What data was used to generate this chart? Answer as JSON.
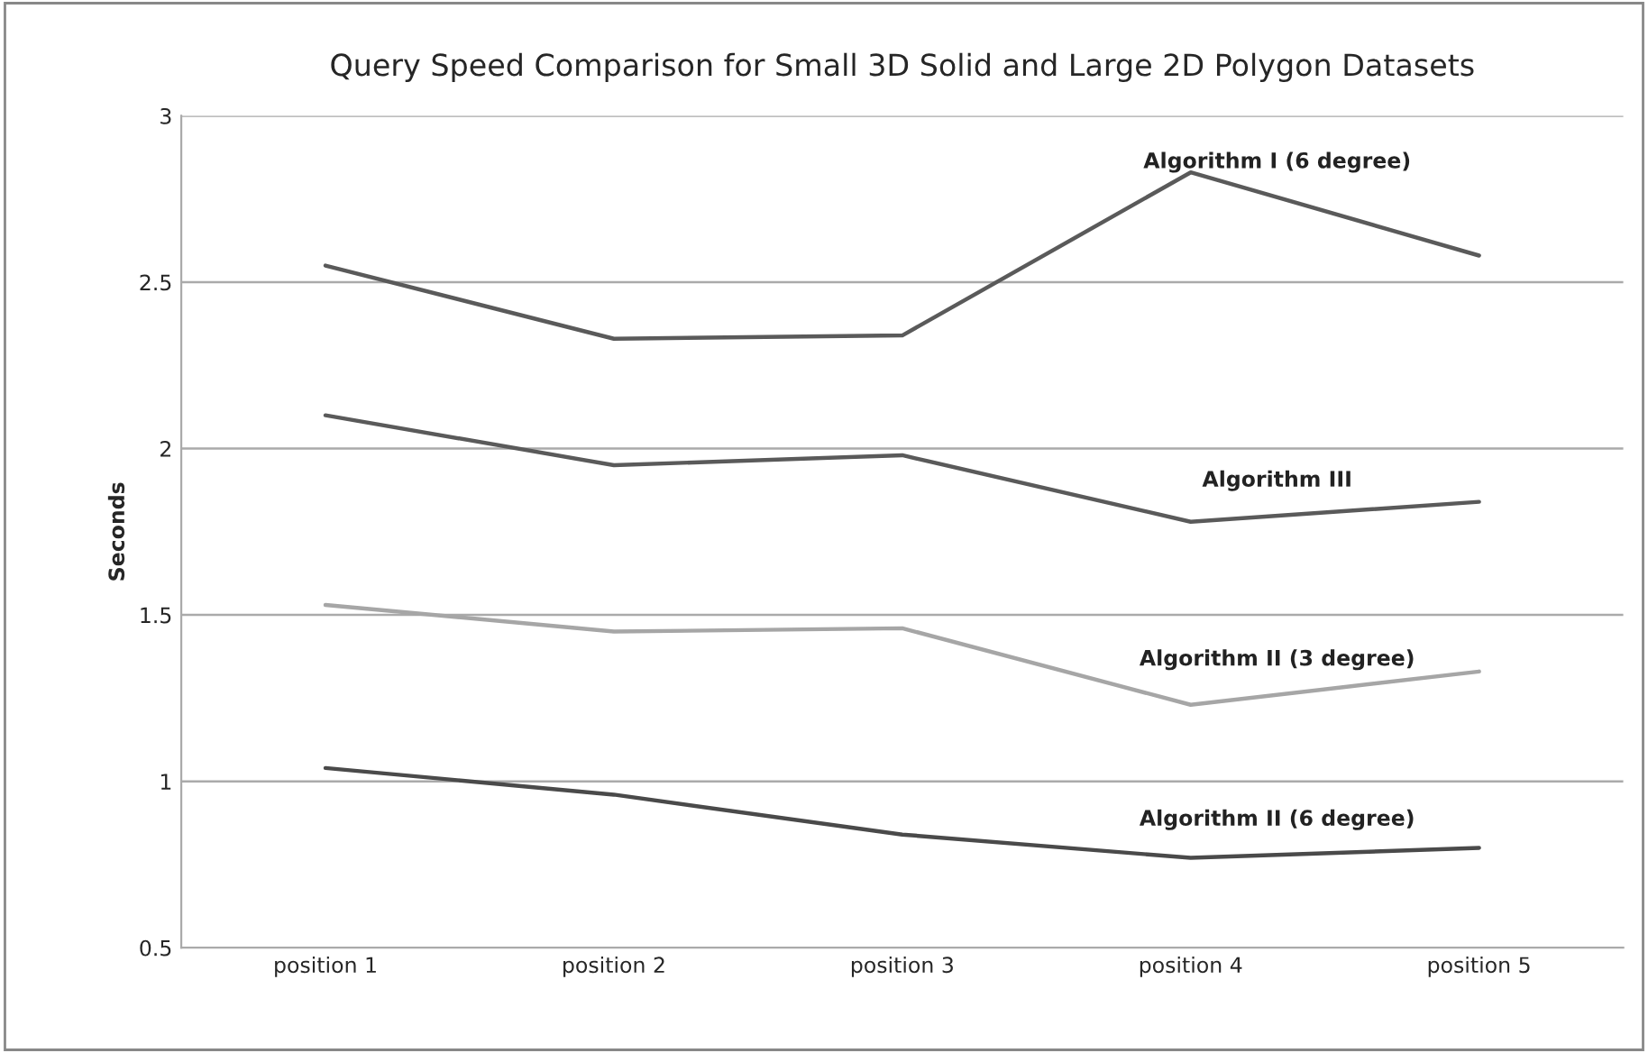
{
  "chart_data": {
    "type": "line",
    "title": "Query Speed Comparison for Small 3D Solid and Large 2D Polygon Datasets",
    "ylabel": "Seconds",
    "categories": [
      "position 1",
      "position 2",
      "position 3",
      "position 4",
      "position 5"
    ],
    "series": [
      {
        "name": "Algorithm I (6 degree)",
        "color": "#5a5a5a",
        "values": [
          2.55,
          2.33,
          2.34,
          2.83,
          2.58
        ]
      },
      {
        "name": "Algorithm III",
        "color": "#5a5a5a",
        "values": [
          2.1,
          1.95,
          1.98,
          1.78,
          1.84
        ]
      },
      {
        "name": "Algorithm II (3 degree)",
        "color": "#a6a6a6",
        "values": [
          1.53,
          1.45,
          1.46,
          1.23,
          1.33
        ]
      },
      {
        "name": "Algorithm II (6 degree)",
        "color": "#4a4a4a",
        "values": [
          1.04,
          0.96,
          0.84,
          0.77,
          0.8
        ]
      }
    ],
    "ylim": [
      0.5,
      3
    ],
    "yticks": [
      0.5,
      1,
      1.5,
      2,
      2.5,
      3
    ],
    "grid": "y",
    "legend": false,
    "marker": "none",
    "line_style": "solid"
  }
}
